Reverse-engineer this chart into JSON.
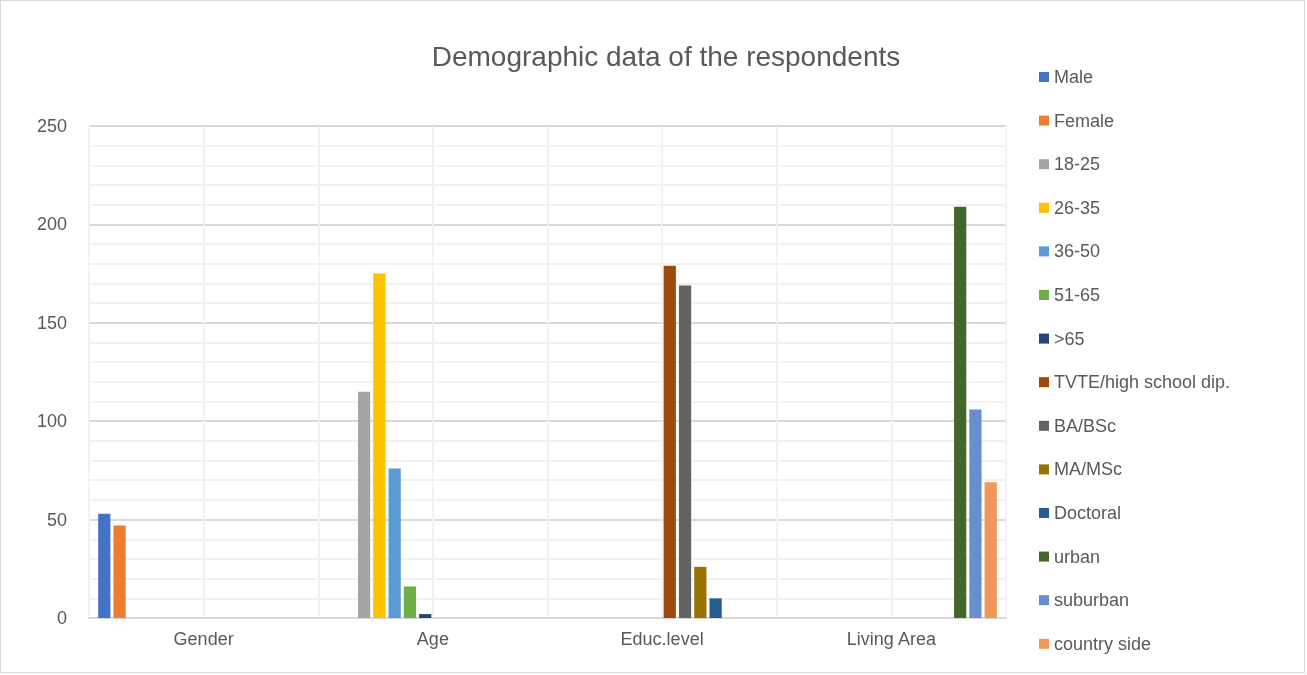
{
  "chart_data": {
    "type": "bar",
    "title": "Demographic data of the respondents",
    "categories": [
      "Gender",
      "Age",
      "Educ.level",
      "Living Area"
    ],
    "series": [
      {
        "name": "Male",
        "color": "#4472c4",
        "values": [
          53,
          null,
          null,
          null
        ]
      },
      {
        "name": "Female",
        "color": "#ed7d31",
        "values": [
          47,
          null,
          null,
          null
        ]
      },
      {
        "name": "18-25",
        "color": "#a5a5a5",
        "values": [
          null,
          115,
          null,
          null
        ]
      },
      {
        "name": "26-35",
        "color": "#ffc000",
        "values": [
          null,
          175,
          null,
          null
        ]
      },
      {
        "name": "36-50",
        "color": "#5b9bd5",
        "values": [
          null,
          76,
          null,
          null
        ]
      },
      {
        "name": "51-65",
        "color": "#70ad47",
        "values": [
          null,
          16,
          null,
          null
        ]
      },
      {
        "name": ">65",
        "color": "#264478",
        "values": [
          null,
          2,
          null,
          null
        ]
      },
      {
        "name": "TVTE/high school dip.",
        "color": "#9e480e",
        "values": [
          null,
          null,
          179,
          null
        ]
      },
      {
        "name": "BA/BSc",
        "color": "#636363",
        "values": [
          null,
          null,
          169,
          null
        ]
      },
      {
        "name": "MA/MSc",
        "color": "#997300",
        "values": [
          null,
          null,
          26,
          null
        ]
      },
      {
        "name": "Doctoral",
        "color": "#255e91",
        "values": [
          null,
          null,
          10,
          null
        ]
      },
      {
        "name": "urban",
        "color": "#43682b",
        "values": [
          null,
          null,
          null,
          209
        ]
      },
      {
        "name": "suburban",
        "color": "#698ed0",
        "values": [
          null,
          null,
          null,
          106
        ]
      },
      {
        "name": "country side",
        "color": "#f1975a",
        "values": [
          null,
          null,
          null,
          69
        ]
      }
    ],
    "ylim": [
      0,
      250
    ],
    "yticks": [
      0,
      50,
      100,
      150,
      200,
      250
    ],
    "grid": true,
    "legend": "right"
  }
}
